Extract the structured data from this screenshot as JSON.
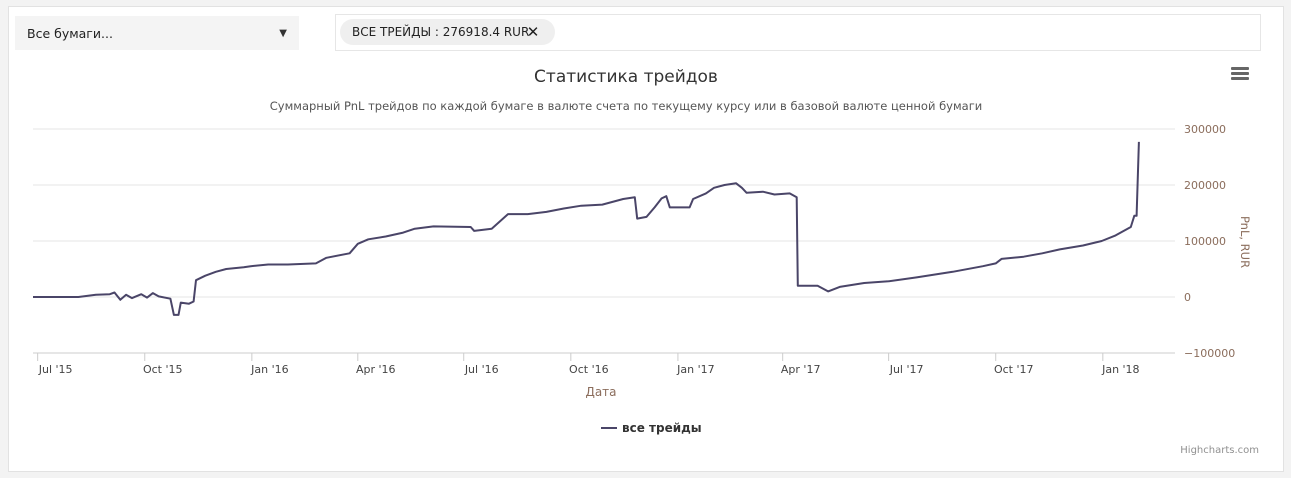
{
  "select": {
    "value": "Все бумаги...",
    "caret": "▼"
  },
  "filter": {
    "tag_label": "ВСЕ ТРЕЙДЫ : 276918.4 RUR",
    "close_glyph": "✕"
  },
  "menu": {
    "icon": "hamburger-menu-icon"
  },
  "credit": "Highcharts.com",
  "colors": {
    "series": "#4a4568",
    "axis_title": "#8b6d5c",
    "grid": "#e6e6e6",
    "tick_text": "#444444"
  },
  "chart_data": {
    "type": "line",
    "title": "Статистика трейдов",
    "subtitle": "Суммарный PnL трейдов по каждой бумаге в валюте счета по текущему курсу или в базовой валюте ценной бумаги",
    "xlabel": "Дата",
    "ylabel": "PnL, RUR",
    "x_ticks": [
      "Jul '15",
      "Oct '15",
      "Jan '16",
      "Apr '16",
      "Jul '16",
      "Oct '16",
      "Jan '17",
      "Apr '17",
      "Jul '17",
      "Oct '17",
      "Jan '18"
    ],
    "y_ticks": [
      "300000",
      "200000",
      "100000",
      "0",
      "−100000"
    ],
    "ylim": [
      -100000,
      300000
    ],
    "xlim": [
      "2015-06-27",
      "2018-03-04"
    ],
    "y_axis_side": "right",
    "grid": true,
    "legend": "bottom-center",
    "series": [
      {
        "name": "все трейды",
        "points": [
          [
            "2015-06-27",
            0
          ],
          [
            "2015-08-05",
            0
          ],
          [
            "2015-08-20",
            4000
          ],
          [
            "2015-09-01",
            5000
          ],
          [
            "2015-09-05",
            8000
          ],
          [
            "2015-09-10",
            -5000
          ],
          [
            "2015-09-15",
            4000
          ],
          [
            "2015-09-20",
            -2000
          ],
          [
            "2015-09-28",
            5000
          ],
          [
            "2015-10-03",
            -1000
          ],
          [
            "2015-10-08",
            7000
          ],
          [
            "2015-10-13",
            1000
          ],
          [
            "2015-10-23",
            -3000
          ],
          [
            "2015-10-26",
            -32000
          ],
          [
            "2015-10-30",
            -32000
          ],
          [
            "2015-11-01",
            -10000
          ],
          [
            "2015-11-08",
            -12000
          ],
          [
            "2015-11-12",
            -8000
          ],
          [
            "2015-11-14",
            30000
          ],
          [
            "2015-11-22",
            38000
          ],
          [
            "2015-12-01",
            45000
          ],
          [
            "2015-12-10",
            50000
          ],
          [
            "2015-12-25",
            53000
          ],
          [
            "2015-12-31",
            55000
          ],
          [
            "2016-01-15",
            58000
          ],
          [
            "2016-02-01",
            58000
          ],
          [
            "2016-02-25",
            60000
          ],
          [
            "2016-03-05",
            70000
          ],
          [
            "2016-03-25",
            78000
          ],
          [
            "2016-04-01",
            95000
          ],
          [
            "2016-04-10",
            103000
          ],
          [
            "2016-04-25",
            108000
          ],
          [
            "2016-05-10",
            115000
          ],
          [
            "2016-05-20",
            122000
          ],
          [
            "2016-06-05",
            126000
          ],
          [
            "2016-07-07",
            125000
          ],
          [
            "2016-07-10",
            118000
          ],
          [
            "2016-07-25",
            122000
          ],
          [
            "2016-08-08",
            148000
          ],
          [
            "2016-08-25",
            148000
          ],
          [
            "2016-09-10",
            152000
          ],
          [
            "2016-09-25",
            158000
          ],
          [
            "2016-10-10",
            163000
          ],
          [
            "2016-10-28",
            165000
          ],
          [
            "2016-11-15",
            175000
          ],
          [
            "2016-11-25",
            178000
          ],
          [
            "2016-11-27",
            140000
          ],
          [
            "2016-12-05",
            143000
          ],
          [
            "2016-12-12",
            160000
          ],
          [
            "2016-12-18",
            176000
          ],
          [
            "2016-12-22",
            180000
          ],
          [
            "2016-12-25",
            160000
          ],
          [
            "2017-01-11",
            160000
          ],
          [
            "2017-01-14",
            175000
          ],
          [
            "2017-01-25",
            185000
          ],
          [
            "2017-02-01",
            195000
          ],
          [
            "2017-02-10",
            200000
          ],
          [
            "2017-02-20",
            203000
          ],
          [
            "2017-02-25",
            195000
          ],
          [
            "2017-03-01",
            186000
          ],
          [
            "2017-03-15",
            188000
          ],
          [
            "2017-03-25",
            183000
          ],
          [
            "2017-04-07",
            185000
          ],
          [
            "2017-04-13",
            178000
          ],
          [
            "2017-04-14",
            20000
          ],
          [
            "2017-05-01",
            20000
          ],
          [
            "2017-05-10",
            10000
          ],
          [
            "2017-05-20",
            18000
          ],
          [
            "2017-06-10",
            25000
          ],
          [
            "2017-07-01",
            28000
          ],
          [
            "2017-07-25",
            35000
          ],
          [
            "2017-08-25",
            45000
          ],
          [
            "2017-09-20",
            55000
          ],
          [
            "2017-10-01",
            60000
          ],
          [
            "2017-10-06",
            68000
          ],
          [
            "2017-10-25",
            72000
          ],
          [
            "2017-11-10",
            78000
          ],
          [
            "2017-11-25",
            85000
          ],
          [
            "2017-12-15",
            92000
          ],
          [
            "2017-12-31",
            100000
          ],
          [
            "2018-01-12",
            110000
          ],
          [
            "2018-01-25",
            125000
          ],
          [
            "2018-01-28",
            145000
          ],
          [
            "2018-01-30",
            145000
          ],
          [
            "2018-02-01",
            276918.4
          ]
        ]
      }
    ]
  }
}
